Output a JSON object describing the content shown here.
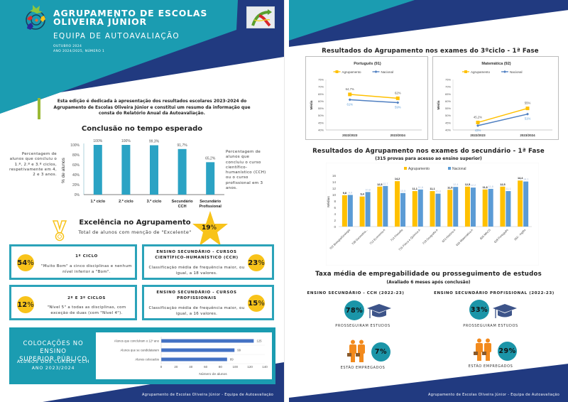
{
  "colors": {
    "teal": "#1b9cb1",
    "navy": "#213a80",
    "yellow": "#f8c31a",
    "bar_blue": "#2ba3c4",
    "nacional_blue": "#4f7fc1",
    "agrupamento_gold": "#ffc000",
    "nacional_light": "#5b9bd5",
    "hbar_blue": "#4472c4",
    "orange": "#f28a1d"
  },
  "left": {
    "header": {
      "title_line1": "AGRUPAMENTO DE ESCOLAS",
      "title_line2": "OLIVEIRA JÚNIOR",
      "subtitle": "EQUIPA DE AUTOAVALIAÇÃO",
      "date": "OUTUBRO 2024",
      "issue": "ANO 2024/2025, NÚMERO 1"
    },
    "intro": "Esta edição é dedicada à apresentação dos resultados escolares 2023-2024 do Agrupamento de Escolas Oliveira Júnior e constitui um resumo da informação que consta do Relatório Anual da Autoavaliação.",
    "conclusao": {
      "title": "Conclusão no tempo esperado",
      "note_left": "Percentagem de alunos que concluiu o 1.º, 2.º e 3.º ciclos, respetivamente em 4, 2 e 3 anos.",
      "note_right": "Percentagem de alunos que concluiu o curso científico-humanístico (CCH) ou o curso profissional em 3 anos."
    },
    "excelencia": {
      "title": "Excelência no Agrupamento",
      "subtitle": "Total de alunos com menção de \"Excelente\"",
      "total_value": "19",
      "boxes": [
        {
          "value": "54",
          "title": "1º CICLO",
          "text": "\"Muito Bom\" a cinco disciplinas e nenhum nível inferior a \"Bom\"."
        },
        {
          "value": "23",
          "title": "ENSINO SECUNDÁRIO - CURSOS CIENTÍFICO-HUMANÍSTICO (CCH)",
          "text": "Classificação média de frequência maior, ou igual, a 18 valores."
        },
        {
          "value": "12",
          "title": "2º E 3º CICLOS",
          "text": "\"Nível 5\" a todas as disciplinas, com exceção de duas (com \"Nível 4\")."
        },
        {
          "value": "15",
          "title": "ENSINO SECUNDÁRIO - CURSOS PROFISSIONAIS",
          "text": "Classificação média de frequência maior, ou igual, a 16 valores."
        }
      ],
      "pct_sign": "%"
    },
    "colocacoes": {
      "title_line1": "COLOCAÇÕES NO ENSINO",
      "title_line2": "SUPERIOR PÚBLICO",
      "sub_line1": "ALUNOS DOS CURSOS CCH",
      "sub_line2": "ANO 2023/2024"
    },
    "footer": "Agrupamento de Escolas Oliveira Júnior - Equipa de Autoavaliação"
  },
  "right": {
    "ciclo3_title": "Resultados do Agrupamento nos exames do 3ºciclo - 1ª Fase",
    "secundario_title": "Resultados do Agrupamento nos exames do secundário - 1ª Fase",
    "secundario_subtitle": "(315 provas para acesso ao ensino superior)",
    "emprego": {
      "title": "Taxa média de empregabilidade ou prosseguimento de estudos",
      "subtitle": "(Avaliado 6 meses após conclusão)",
      "groups": [
        {
          "title": "ENSINO SECUNDÁRIO - CCH (2022-23)",
          "estudos": "78%",
          "estudos_label": "PROSSEGUIRAM ESTUDOS",
          "empregados": "7%",
          "empregados_label": "ESTÃO EMPREGADOS"
        },
        {
          "title": "ENSINO SECUNDÁRIO PROFISSIONAL (2022-23)",
          "estudos": "33%",
          "estudos_label": "PROSSEGUIRAM ESTUDOS",
          "empregados": "29%",
          "empregados_label": "ESTÃO EMPREGADOS"
        }
      ]
    },
    "footer": "Agrupamento de Escolas Oliveira Júnior - Equipa de Autoavaliação"
  },
  "chart_data": [
    {
      "id": "conclusao",
      "type": "bar",
      "title": "Conclusão no tempo esperado",
      "categories": [
        "1.º ciclo",
        "2.º ciclo",
        "3.º ciclo",
        "Secundário CCH",
        "Secundário Profissional"
      ],
      "values": [
        100,
        100,
        99.3,
        91.7,
        65.2
      ],
      "labels": [
        "100%",
        "100%",
        "99,3%",
        "91,7%",
        "65,2%"
      ],
      "ylabel": "% de alunos",
      "yticks": [
        "0%",
        "20%",
        "40%",
        "60%",
        "80%",
        "100%"
      ],
      "ylim": [
        0,
        100
      ]
    },
    {
      "id": "colocacoes",
      "type": "bar",
      "orientation": "horizontal",
      "categories": [
        "Alunos que concluíram o 12º ano",
        "Alunos que se candidataram",
        "Alunos colocados"
      ],
      "values": [
        125,
        99,
        89
      ],
      "xlabel": "Número de alunos",
      "xticks": [
        "0",
        "20",
        "40",
        "60",
        "80",
        "100",
        "120",
        "140"
      ],
      "xlim": [
        0,
        140
      ]
    },
    {
      "id": "portugues",
      "type": "line",
      "title": "Português (91)",
      "x": [
        "2022/2023",
        "2023/2024"
      ],
      "series": [
        {
          "name": "Agrupamento",
          "values": [
            64.7,
            62
          ],
          "labels": [
            "64,7%",
            "62%"
          ]
        },
        {
          "name": "Nacional",
          "values": [
            61,
            59
          ],
          "labels": [
            "61%",
            "59%"
          ]
        }
      ],
      "ylabel": "Média",
      "yticks": [
        "40%",
        "45%",
        "50%",
        "55%",
        "60%",
        "65%",
        "70%",
        "75%"
      ],
      "ylim": [
        40,
        75
      ],
      "legend": "top"
    },
    {
      "id": "matematica",
      "type": "line",
      "title": "Matemática (92)",
      "x": [
        "2022/2023",
        "2023/2024"
      ],
      "series": [
        {
          "name": "Agrupamento",
          "values": [
            45.2,
            55
          ],
          "labels": [
            "45,2%",
            "55%"
          ]
        },
        {
          "name": "Nacional",
          "values": [
            43,
            51
          ],
          "labels": [
            "43%",
            "51%"
          ]
        }
      ],
      "ylabel": "Média",
      "yticks": [
        "40%",
        "45%",
        "50%",
        "55%",
        "60%",
        "65%",
        "70%",
        "75%"
      ],
      "ylim": [
        40,
        75
      ],
      "legend": "top"
    },
    {
      "id": "secundario",
      "type": "bar",
      "title": "Resultados do Agrupamento nos exames do secundário - 1ª Fase",
      "categories": [
        "702 Biologia/Geologia",
        "708 Geometria...",
        "712 Economia A",
        "714 Filosofia",
        "715 Física e Química A",
        "719 Geografia A",
        "623 História A",
        "635 Matemática A",
        "835 MACS",
        "639 Português",
        "550 - Inglês"
      ],
      "series": [
        {
          "name": "Agrupamento",
          "values": [
            9.8,
            9.4,
            12.5,
            14.2,
            11.1,
            11.1,
            11.5,
            12.5,
            11.6,
            12.5,
            14.4
          ],
          "labels": [
            "9,8",
            "9,4",
            "12,5",
            "14,2",
            "11,1",
            "11,1",
            "11,5",
            "12,5",
            "11,6",
            "12,5",
            "14,4"
          ]
        },
        {
          "name": "Nacional",
          "values": [
            9.9,
            10.8,
            12.7,
            10.5,
            11.6,
            10.3,
            12.4,
            12.2,
            11.8,
            11.1,
            14.1
          ],
          "labels": [
            "9,9",
            "10,8",
            "12,7",
            "10,5",
            "11,6",
            "10,3",
            "12,4",
            "12,2",
            "11,8",
            "11,1",
            "14,1"
          ]
        }
      ],
      "ylabel": "Médias",
      "yticks": [
        "0",
        "2",
        "4",
        "6",
        "8",
        "10",
        "12",
        "14",
        "16"
      ],
      "ylim": [
        0,
        16
      ],
      "legend": "top"
    }
  ]
}
